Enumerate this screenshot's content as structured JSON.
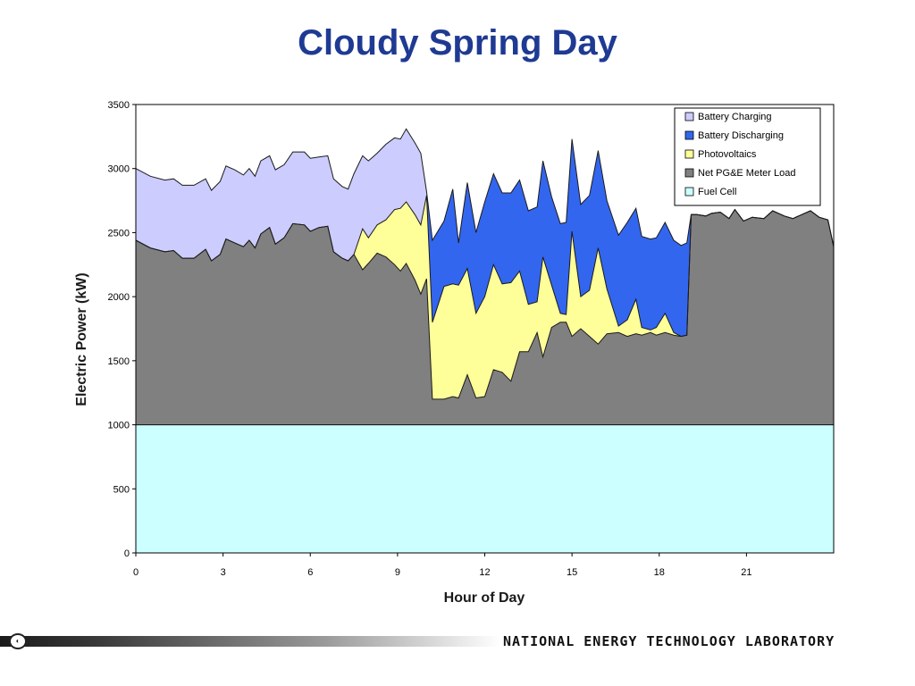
{
  "slide": {
    "title": "Cloudy Spring Day",
    "footer_text": "NATIONAL ENERGY TECHNOLOGY LABORATORY"
  },
  "colors": {
    "battery_charging": "#ccccff",
    "battery_discharging": "#3366ee",
    "photovoltaics": "#ffff99",
    "net_load": "#808080",
    "fuel_cell": "#ccffff",
    "title": "#1f3a93"
  },
  "chart_data": {
    "type": "area",
    "title": "",
    "xlabel": "Hour of Day",
    "ylabel": "Electric Power (kW)",
    "xlim": [
      0,
      24
    ],
    "ylim": [
      0,
      3500
    ],
    "x_ticks": [
      0,
      3,
      6,
      9,
      12,
      15,
      18,
      21
    ],
    "y_ticks": [
      0,
      500,
      1000,
      1500,
      2000,
      2500,
      3000,
      3500
    ],
    "grid": false,
    "legend_position": "top-right",
    "legend": [
      "Battery Charging",
      "Battery Discharging",
      "Photovoltaics",
      "Net PG&E Meter Load",
      "Fuel Cell"
    ],
    "fuel_cell_kw": 1000,
    "total_load": [
      [
        0,
        3000
      ],
      [
        0.5,
        2940
      ],
      [
        1,
        2910
      ],
      [
        1.3,
        2920
      ],
      [
        1.6,
        2870
      ],
      [
        2,
        2870
      ],
      [
        2.4,
        2920
      ],
      [
        2.6,
        2830
      ],
      [
        2.9,
        2900
      ],
      [
        3.1,
        3020
      ],
      [
        3.4,
        2990
      ],
      [
        3.7,
        2950
      ],
      [
        3.9,
        3000
      ],
      [
        4.1,
        2940
      ],
      [
        4.3,
        3060
      ],
      [
        4.6,
        3100
      ],
      [
        4.8,
        2990
      ],
      [
        5.1,
        3030
      ],
      [
        5.4,
        3130
      ],
      [
        5.8,
        3130
      ],
      [
        6,
        3080
      ],
      [
        6.3,
        3090
      ],
      [
        6.6,
        3100
      ],
      [
        6.8,
        2920
      ],
      [
        7.1,
        2860
      ],
      [
        7.3,
        2840
      ],
      [
        7.5,
        2960
      ],
      [
        7.8,
        3100
      ],
      [
        8,
        3060
      ],
      [
        8.3,
        3120
      ],
      [
        8.6,
        3190
      ],
      [
        8.9,
        3240
      ],
      [
        9.1,
        3230
      ],
      [
        9.3,
        3310
      ],
      [
        9.6,
        3200
      ],
      [
        9.8,
        3120
      ],
      [
        10,
        2820
      ],
      [
        10.2,
        2440
      ],
      [
        10.6,
        2590
      ],
      [
        10.9,
        2840
      ],
      [
        11.1,
        2420
      ],
      [
        11.4,
        2890
      ],
      [
        11.7,
        2500
      ],
      [
        12,
        2740
      ],
      [
        12.3,
        2960
      ],
      [
        12.6,
        2810
      ],
      [
        12.9,
        2810
      ],
      [
        13.2,
        2910
      ],
      [
        13.5,
        2670
      ],
      [
        13.8,
        2700
      ],
      [
        14,
        3060
      ],
      [
        14.3,
        2780
      ],
      [
        14.6,
        2570
      ],
      [
        14.8,
        2580
      ],
      [
        15,
        3230
      ],
      [
        15.3,
        2720
      ],
      [
        15.6,
        2790
      ],
      [
        15.9,
        3140
      ],
      [
        16.2,
        2750
      ],
      [
        16.6,
        2480
      ],
      [
        16.9,
        2580
      ],
      [
        17.2,
        2690
      ],
      [
        17.4,
        2470
      ],
      [
        17.7,
        2450
      ],
      [
        17.9,
        2460
      ],
      [
        18.2,
        2580
      ],
      [
        18.5,
        2440
      ],
      [
        18.75,
        2400
      ],
      [
        18.95,
        2420
      ],
      [
        19.1,
        2640
      ],
      [
        19.3,
        2640
      ],
      [
        19.6,
        2630
      ],
      [
        19.8,
        2650
      ],
      [
        20.1,
        2660
      ],
      [
        20.4,
        2610
      ],
      [
        20.6,
        2680
      ],
      [
        20.9,
        2590
      ],
      [
        21.2,
        2620
      ],
      [
        21.6,
        2610
      ],
      [
        21.9,
        2670
      ],
      [
        22.3,
        2630
      ],
      [
        22.6,
        2610
      ],
      [
        22.9,
        2640
      ],
      [
        23.2,
        2670
      ],
      [
        23.5,
        2620
      ],
      [
        23.8,
        2600
      ],
      [
        24.1,
        2390
      ],
      [
        24.4,
        2400
      ]
    ],
    "net_plus_pv": [
      [
        0,
        2440
      ],
      [
        0.5,
        2380
      ],
      [
        1,
        2350
      ],
      [
        1.3,
        2360
      ],
      [
        1.6,
        2300
      ],
      [
        2,
        2300
      ],
      [
        2.4,
        2370
      ],
      [
        2.6,
        2280
      ],
      [
        2.9,
        2330
      ],
      [
        3.1,
        2450
      ],
      [
        3.4,
        2420
      ],
      [
        3.7,
        2390
      ],
      [
        3.9,
        2440
      ],
      [
        4.1,
        2380
      ],
      [
        4.3,
        2490
      ],
      [
        4.6,
        2540
      ],
      [
        4.8,
        2410
      ],
      [
        5.1,
        2460
      ],
      [
        5.4,
        2570
      ],
      [
        5.8,
        2560
      ],
      [
        6,
        2510
      ],
      [
        6.3,
        2540
      ],
      [
        6.6,
        2550
      ],
      [
        6.8,
        2350
      ],
      [
        7.1,
        2300
      ],
      [
        7.3,
        2280
      ],
      [
        7.5,
        2330
      ],
      [
        7.8,
        2530
      ],
      [
        8,
        2460
      ],
      [
        8.3,
        2560
      ],
      [
        8.6,
        2600
      ],
      [
        8.9,
        2680
      ],
      [
        9.1,
        2690
      ],
      [
        9.3,
        2740
      ],
      [
        9.6,
        2640
      ],
      [
        9.8,
        2560
      ],
      [
        10,
        2790
      ],
      [
        10.2,
        1800
      ],
      [
        10.6,
        2080
      ],
      [
        10.9,
        2100
      ],
      [
        11.1,
        2090
      ],
      [
        11.4,
        2220
      ],
      [
        11.7,
        1870
      ],
      [
        12,
        2000
      ],
      [
        12.3,
        2250
      ],
      [
        12.6,
        2100
      ],
      [
        12.9,
        2110
      ],
      [
        13.2,
        2200
      ],
      [
        13.5,
        1940
      ],
      [
        13.8,
        1960
      ],
      [
        14,
        2310
      ],
      [
        14.3,
        2090
      ],
      [
        14.6,
        1870
      ],
      [
        14.8,
        1860
      ],
      [
        15,
        2510
      ],
      [
        15.3,
        2000
      ],
      [
        15.6,
        2050
      ],
      [
        15.9,
        2380
      ],
      [
        16.2,
        2060
      ],
      [
        16.6,
        1770
      ],
      [
        16.9,
        1820
      ],
      [
        17.2,
        1980
      ],
      [
        17.4,
        1760
      ],
      [
        17.7,
        1740
      ],
      [
        17.9,
        1760
      ],
      [
        18.2,
        1870
      ],
      [
        18.5,
        1720
      ],
      [
        18.75,
        1690
      ],
      [
        18.95,
        1700
      ],
      [
        19.1,
        2640
      ],
      [
        19.3,
        2640
      ],
      [
        19.6,
        2630
      ],
      [
        19.8,
        2650
      ],
      [
        20.1,
        2660
      ],
      [
        20.4,
        2610
      ],
      [
        20.6,
        2680
      ],
      [
        20.9,
        2590
      ],
      [
        21.2,
        2620
      ],
      [
        21.6,
        2610
      ],
      [
        21.9,
        2670
      ],
      [
        22.3,
        2630
      ],
      [
        22.6,
        2610
      ],
      [
        22.9,
        2640
      ],
      [
        23.2,
        2670
      ],
      [
        23.5,
        2620
      ],
      [
        23.8,
        2600
      ],
      [
        24.1,
        2390
      ],
      [
        24.4,
        2400
      ]
    ],
    "net_load_top": [
      [
        0,
        2440
      ],
      [
        0.5,
        2380
      ],
      [
        1,
        2350
      ],
      [
        1.3,
        2360
      ],
      [
        1.6,
        2300
      ],
      [
        2,
        2300
      ],
      [
        2.4,
        2370
      ],
      [
        2.6,
        2280
      ],
      [
        2.9,
        2330
      ],
      [
        3.1,
        2450
      ],
      [
        3.4,
        2420
      ],
      [
        3.7,
        2390
      ],
      [
        3.9,
        2440
      ],
      [
        4.1,
        2380
      ],
      [
        4.3,
        2490
      ],
      [
        4.6,
        2540
      ],
      [
        4.8,
        2410
      ],
      [
        5.1,
        2460
      ],
      [
        5.4,
        2570
      ],
      [
        5.8,
        2560
      ],
      [
        6,
        2510
      ],
      [
        6.3,
        2540
      ],
      [
        6.6,
        2550
      ],
      [
        6.8,
        2350
      ],
      [
        7.1,
        2300
      ],
      [
        7.3,
        2280
      ],
      [
        7.5,
        2330
      ],
      [
        7.8,
        2210
      ],
      [
        8,
        2260
      ],
      [
        8.3,
        2340
      ],
      [
        8.6,
        2310
      ],
      [
        8.9,
        2250
      ],
      [
        9.1,
        2200
      ],
      [
        9.3,
        2260
      ],
      [
        9.6,
        2130
      ],
      [
        9.8,
        2020
      ],
      [
        10,
        2140
      ],
      [
        10.2,
        1200
      ],
      [
        10.6,
        1200
      ],
      [
        10.9,
        1220
      ],
      [
        11.1,
        1210
      ],
      [
        11.4,
        1390
      ],
      [
        11.7,
        1210
      ],
      [
        12,
        1220
      ],
      [
        12.3,
        1430
      ],
      [
        12.6,
        1410
      ],
      [
        12.9,
        1340
      ],
      [
        13.2,
        1570
      ],
      [
        13.5,
        1570
      ],
      [
        13.8,
        1720
      ],
      [
        14,
        1530
      ],
      [
        14.3,
        1760
      ],
      [
        14.6,
        1800
      ],
      [
        14.8,
        1800
      ],
      [
        15,
        1690
      ],
      [
        15.3,
        1750
      ],
      [
        15.6,
        1690
      ],
      [
        15.9,
        1630
      ],
      [
        16.2,
        1710
      ],
      [
        16.6,
        1720
      ],
      [
        16.9,
        1690
      ],
      [
        17.2,
        1710
      ],
      [
        17.4,
        1700
      ],
      [
        17.7,
        1720
      ],
      [
        17.9,
        1700
      ],
      [
        18.2,
        1720
      ],
      [
        18.5,
        1700
      ],
      [
        18.75,
        1690
      ],
      [
        18.95,
        1700
      ],
      [
        19.1,
        2640
      ],
      [
        19.3,
        2640
      ],
      [
        19.6,
        2630
      ],
      [
        19.8,
        2650
      ],
      [
        20.1,
        2660
      ],
      [
        20.4,
        2610
      ],
      [
        20.6,
        2680
      ],
      [
        20.9,
        2590
      ],
      [
        21.2,
        2620
      ],
      [
        21.6,
        2610
      ],
      [
        21.9,
        2670
      ],
      [
        22.3,
        2630
      ],
      [
        22.6,
        2610
      ],
      [
        22.9,
        2640
      ],
      [
        23.2,
        2670
      ],
      [
        23.5,
        2620
      ],
      [
        23.8,
        2600
      ],
      [
        24.1,
        2390
      ],
      [
        24.4,
        2400
      ]
    ]
  }
}
